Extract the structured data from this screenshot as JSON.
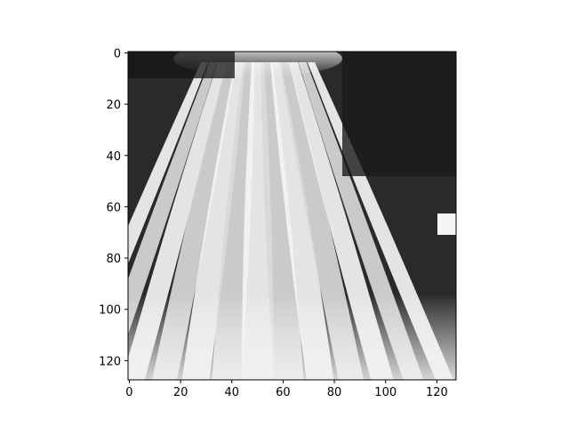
{
  "chart_data": {
    "type": "heatmap",
    "title": "",
    "xlabel": "",
    "ylabel": "",
    "colormap": "gray",
    "image_size": [
      128,
      128
    ],
    "xlim": [
      -0.5,
      127.5
    ],
    "ylim": [
      127.5,
      -0.5
    ],
    "x_ticks": [
      0,
      20,
      40,
      60,
      80,
      100,
      120
    ],
    "y_ticks": [
      0,
      20,
      40,
      60,
      80,
      100,
      120
    ],
    "x_tick_labels": [
      "0",
      "20",
      "40",
      "60",
      "80",
      "100",
      "120"
    ],
    "y_tick_labels": [
      "0",
      "20",
      "40",
      "60",
      "80",
      "100",
      "120"
    ],
    "grid": false,
    "content": "grayscale image of vertical white/black striped cactus-like ribs with a bright top region"
  }
}
